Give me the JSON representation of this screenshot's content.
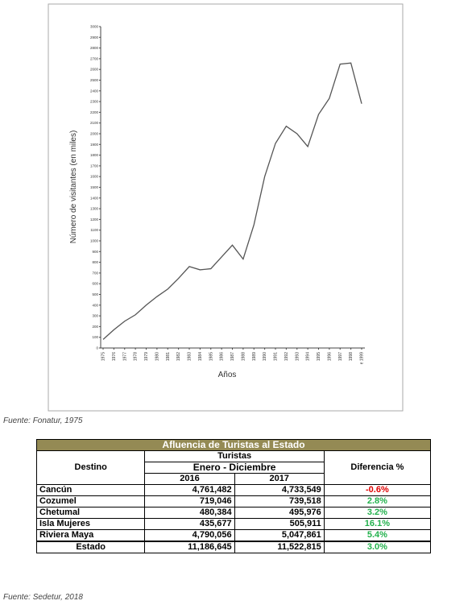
{
  "chart_data": {
    "type": "line",
    "y_label": "Número de visitantes (en miles)",
    "x_label": "Años",
    "categories": [
      "1975",
      "1976",
      "1977",
      "1978",
      "1979",
      "1980",
      "1981",
      "1982",
      "1983",
      "1984",
      "1985",
      "1986",
      "1987",
      "1988",
      "1989",
      "1990",
      "1991",
      "1992",
      "1993",
      "1994",
      "1995",
      "1996",
      "1997",
      "1998",
      "e 1999"
    ],
    "values": [
      80,
      170,
      250,
      310,
      400,
      480,
      550,
      650,
      760,
      730,
      740,
      850,
      960,
      830,
      1150,
      1600,
      1910,
      2070,
      2000,
      1880,
      2180,
      2330,
      2650,
      2660,
      2280
    ],
    "color": "#555555",
    "ylim": [
      0,
      3000
    ],
    "yticks": [
      0,
      100,
      200,
      300,
      400,
      500,
      600,
      700,
      800,
      900,
      1000,
      1100,
      1200,
      1300,
      1400,
      1500,
      1600,
      1700,
      1800,
      1900,
      2000,
      2100,
      2200,
      2300,
      2400,
      2500,
      2600,
      2700,
      2800,
      2900,
      3000
    ]
  },
  "chart_source": "Fuente: Fonatur, 1975",
  "table": {
    "title": "Afluencia de Turistas al Estado",
    "group": "Turistas",
    "period": "Enero - Diciembre",
    "col_destino": "Destino",
    "col_2016": "2016",
    "col_2017": "2017",
    "col_diff": "Diferencia %",
    "rows": [
      [
        "Cancún",
        "4,761,482",
        "4,733,549",
        "-0.6%",
        "#e00000"
      ],
      [
        "Cozumel",
        "719,046",
        "739,518",
        "2.8%",
        "#22b14c"
      ],
      [
        "Chetumal",
        "480,384",
        "495,976",
        "3.2%",
        "#22b14c"
      ],
      [
        "Isla Mujeres",
        "435,677",
        "505,911",
        "16.1%",
        "#22b14c"
      ],
      [
        "Riviera Maya",
        "4,790,056",
        "5,047,861",
        "5.4%",
        "#22b14c"
      ]
    ],
    "total": [
      "Estado",
      "11,186,645",
      "11,522,815",
      "3.0%",
      "#22b14c"
    ]
  },
  "table_source": "Fuente: Sedetur, 2018"
}
